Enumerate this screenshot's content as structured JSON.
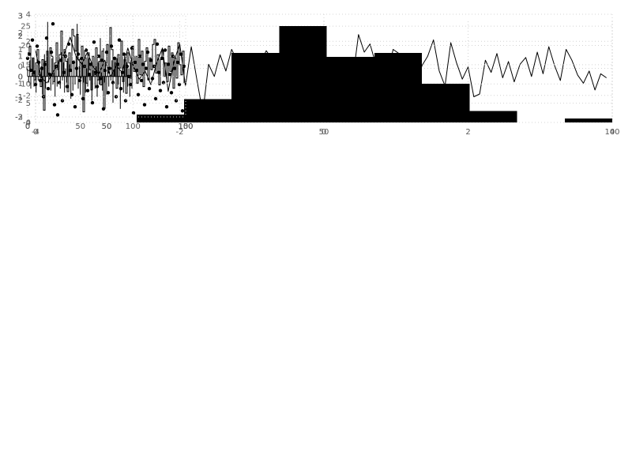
{
  "styles": {
    "background": "#ffffff",
    "line_color": "#000000",
    "grid_color": "#d4d4d4",
    "tick_color": "#595959"
  },
  "chart_data": [
    {
      "id": "line",
      "type": "line",
      "title": "",
      "xlabel": "",
      "ylabel": "",
      "xlim": [
        0,
        100
      ],
      "ylim": [
        -4,
        4
      ],
      "xticks": [
        0,
        50,
        100
      ],
      "yticks": [
        -4,
        -2,
        0,
        2,
        4
      ],
      "grid": true,
      "values": [
        1.3,
        -0.7,
        -1.1,
        -0.3,
        0.4,
        1.1,
        2.3,
        0.9,
        0.3,
        1.2,
        0.1,
        -0.4,
        0.6,
        -0.6,
        0.2,
        -0.3,
        1.5,
        0.1,
        -0.8,
        -0.2,
        -1.2,
        0.4,
        1.5,
        -1.7,
        0.5,
        1.8,
        -1.3,
        1.6,
        -0.9,
        -3.3,
        0.3,
        -0.6,
        1.0,
        -0.2,
        1.4,
        0.5,
        -0.7,
        0.2,
        -1.8,
        0.4,
        1.3,
        0.7,
        -0.3,
        0.9,
        -0.9,
        -0.4,
        0.6,
        -0.5,
        -1.2,
        -0.6,
        0.2,
        -0.3,
        0.8,
        -0.1,
        0.5,
        -0.8,
        2.5,
        1.2,
        1.8,
        0.3,
        -1.0,
        -0.5,
        1.4,
        1.1,
        -0.6,
        0.8,
        -1.5,
        0.2,
        0.9,
        2.1,
        -0.2,
        -1.3,
        1.9,
        0.4,
        -0.8,
        0.1,
        -2.1,
        -1.9,
        0.6,
        -0.3,
        1.1,
        -0.7,
        0.5,
        -1.0,
        0.3,
        0.8,
        -0.6,
        1.2,
        -0.4,
        1.6,
        0.2,
        -0.9,
        1.4,
        0.6,
        -0.5,
        -1.1,
        -0.2,
        -1.6,
        -0.4,
        -0.7
      ]
    },
    {
      "id": "hist",
      "type": "bar",
      "title": "",
      "xlabel": "",
      "ylabel": "",
      "xlim": [
        -4,
        4
      ],
      "ylim": [
        0,
        26.25
      ],
      "xticks": [
        -4,
        -2,
        0,
        2,
        4
      ],
      "yticks": [
        0,
        5,
        10,
        15,
        20,
        25
      ],
      "grid": true,
      "bin_edges": [
        -2.6,
        -1.94,
        -1.28,
        -0.62,
        0.04,
        0.7,
        1.36,
        2.02,
        2.68,
        3.34,
        4.0
      ],
      "counts": [
        2,
        6,
        18,
        25,
        17,
        18,
        10,
        3,
        0,
        1
      ]
    },
    {
      "id": "scatter",
      "type": "scatter",
      "title": "",
      "xlabel": "",
      "ylabel": "",
      "xlim": [
        0,
        100
      ],
      "ylim": [
        -2,
        3
      ],
      "xticks": [
        0,
        50,
        100
      ],
      "yticks": [
        -2,
        -1,
        0,
        1,
        2,
        3
      ],
      "grid": true,
      "values": [
        0.9,
        1.1,
        0.3,
        1.8,
        0.2,
        -0.4,
        1.5,
        0.7,
        -0.2,
        0.4,
        -1.0,
        0.6,
        1.9,
        -0.6,
        0.1,
        1.2,
        2.6,
        -1.4,
        0.5,
        -1.9,
        -0.3,
        0.8,
        -1.2,
        0.2,
        1.0,
        -0.5,
        1.6,
        0.3,
        -0.9,
        0.7,
        -1.5,
        0.4,
        1.1,
        -0.2,
        0.9,
        -1.1,
        0.5,
        1.3,
        -0.7,
        0.1,
        0.6,
        -1.3,
        1.7,
        0.2,
        -0.5,
        1.0,
        -0.1,
        0.8,
        -1.6,
        0.3,
        1.2,
        -0.8,
        0.4,
        1.5,
        -0.3,
        0.9,
        -1.0,
        0.6,
        1.8,
        -0.6,
        0.2,
        1.1,
        -1.2,
        0.5,
        0.0,
        -0.4,
        1.4,
        -1.8,
        0.7,
        0.3,
        -0.9,
        1.0,
        -0.2,
        0.6,
        -1.4,
        0.4,
        1.2,
        -0.6,
        0.8,
        -0.1,
        0.5,
        -1.1,
        1.6,
        0.2,
        -0.7,
        0.9,
        -0.3,
        1.3,
        -1.5,
        0.6,
        0.1,
        -0.8,
        1.0,
        0.4,
        -1.2,
        0.7,
        -0.4,
        1.1,
        -1.7,
        0.5
      ]
    },
    {
      "id": "step",
      "type": "line",
      "subtype": "step",
      "title": "",
      "xlabel": "",
      "ylabel": "",
      "xlim": [
        0,
        100
      ],
      "ylim": [
        -3,
        3
      ],
      "xticks": [
        0,
        50,
        100
      ],
      "yticks": [
        -3,
        -2,
        -1,
        0,
        1,
        2,
        3
      ],
      "grid": true,
      "values": [
        0.8,
        1.2,
        -0.3,
        0.5,
        -0.8,
        0.2,
        1.0,
        -0.5,
        -1.2,
        0.4,
        -2.6,
        0.3,
        0.9,
        -0.4,
        1.1,
        0.6,
        -0.9,
        0.2,
        1.4,
        -0.2,
        0.7,
        2.1,
        -0.6,
        1.0,
        0.3,
        -1.5,
        0.8,
        -0.3,
        2.2,
        1.8,
        0.9,
        1.9,
        0.4,
        -0.7,
        1.2,
        -2.7,
        0.5,
        -1.0,
        0.8,
        -0.2,
        -1.4,
        0.6,
        -0.5,
        1.1,
        -0.8,
        0.3,
        -1.1,
        0.9,
        -2.5,
        0.2,
        1.3,
        -0.4,
        2.3,
        1.0,
        -0.6,
        0.5,
        -1.3,
        0.7,
        -0.1,
        1.5,
        -0.9,
        0.4,
        -1.6,
        0.8,
        0.2,
        -0.7,
        1.2,
        -0.3,
        0.6,
        -1.0,
        1.6,
        -0.5,
        0.9,
        -1.2,
        0.3,
        1.1,
        -0.8,
        0.5,
        -0.2,
        1.3,
        1.6,
        -0.4,
        0.7,
        -1.1,
        0.4,
        1.0,
        -0.6,
        0.2,
        -0.9,
        1.2,
        -0.3,
        0.8,
        -1.3,
        0.5,
        -0.7,
        1.4,
        0.1,
        -0.5,
        0.9,
        -1.0
      ]
    },
    {
      "id": "stem",
      "type": "bar",
      "subtype": "stem",
      "title": "",
      "xlabel": "",
      "ylabel": "",
      "xlim": [
        0,
        150
      ],
      "ylim": [
        -2,
        3
      ],
      "xticks": [
        0,
        50,
        100,
        150
      ],
      "yticks": [
        -2,
        -1,
        0,
        1,
        2,
        3
      ],
      "grid": true,
      "values": [
        0.4,
        -0.3,
        0.8,
        -0.6,
        0.2,
        0.9,
        -0.5,
        0.3,
        -0.8,
        0.6,
        -0.2,
        0.7,
        -0.4,
        0.5,
        -0.9,
        0.3,
        1.1,
        -0.6,
        0.8,
        2.7,
        -0.3,
        0.5,
        -0.7,
        0.9,
        -0.4,
        0.2,
        -1.0,
        0.6,
        -0.5,
        0.8,
        0.3,
        -0.6,
        1.2,
        -0.2,
        0.7,
        -0.8,
        0.4,
        -0.3,
        0.9,
        -0.5,
        0.6,
        -1.1,
        0.3,
        -0.7,
        0.8,
        -0.4,
        1.0,
        2.6,
        -0.6,
        0.5,
        -0.9,
        0.2,
        0.7,
        -0.3,
        1.3,
        -0.8,
        0.4,
        -0.5,
        0.9,
        -0.2,
        0.6,
        -1.2,
        0.3,
        0.8,
        -0.6,
        0.5,
        -1.0,
        0.7,
        -0.4,
        1.9,
        0.2,
        -0.7,
        1.4,
        -0.3,
        0.6,
        -0.9,
        0.4,
        -0.5,
        1.0,
        -0.2,
        0.8,
        -1.3,
        0.3,
        0.7,
        -0.6,
        0.9,
        -0.4,
        0.5,
        -1.6,
        0.2,
        0.6,
        -0.8,
        1.1,
        -0.3,
        0.7,
        -0.5,
        0.4,
        -1.0,
        0.8,
        -0.6
      ]
    }
  ]
}
